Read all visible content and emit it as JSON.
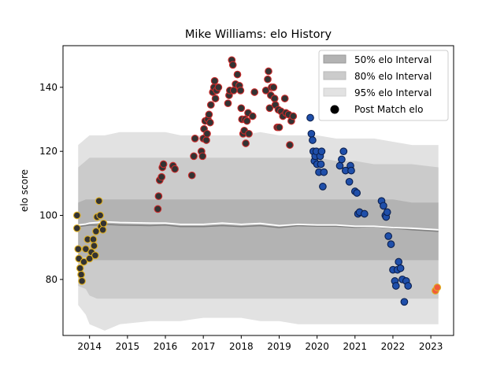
{
  "chart_data": {
    "type": "scatter",
    "title": "Mike Williams: elo History",
    "xlabel": "",
    "ylabel": "elo score",
    "xlim": [
      2013.3,
      2023.6
    ],
    "ylim": [
      62.5,
      153
    ],
    "x_ticks": [
      2014,
      2015,
      2016,
      2017,
      2018,
      2019,
      2020,
      2021,
      2022,
      2023
    ],
    "x_tick_labels": [
      "2014",
      "2015",
      "2016",
      "2017",
      "2018",
      "2019",
      "2020",
      "2021",
      "2022",
      "2023"
    ],
    "y_ticks": [
      80,
      100,
      120,
      140
    ],
    "y_tick_labels": [
      "80",
      "100",
      "120",
      "140"
    ],
    "legend": {
      "placement": "top-right",
      "entries": [
        {
          "label": "50% elo Interval",
          "color": "#b3b3b3"
        },
        {
          "label": "80% elo Interval",
          "color": "#cbcbcb"
        },
        {
          "label": "95% elo Interval",
          "color": "#e2e2e2"
        },
        {
          "label": "Post Match elo",
          "color": "#000000"
        }
      ]
    },
    "colors": {
      "band50": "#b3b3b3",
      "band80": "#cbcbcb",
      "band95": "#e2e2e2",
      "median_line": "#808080",
      "mean_line": "#ffffff",
      "point_fill": "#333333"
    },
    "bands": {
      "x": [
        2013.7,
        2013.9,
        2014.0,
        2014.2,
        2014.4,
        2014.8,
        2015.6,
        2016.0,
        2016.4,
        2017.0,
        2017.5,
        2018.0,
        2018.5,
        2019.0,
        2019.5,
        2020.0,
        2020.5,
        2021.0,
        2021.5,
        2022.0,
        2022.5,
        2023.2
      ],
      "p95_low": [
        72,
        69,
        66,
        65,
        64,
        66,
        67,
        67,
        67,
        68,
        68,
        68,
        67,
        67,
        66,
        66,
        66,
        66,
        66,
        66,
        66,
        66
      ],
      "p95_high": [
        122,
        124,
        125,
        125,
        125,
        126,
        126,
        126,
        125,
        125,
        125,
        125,
        126,
        125,
        125,
        125,
        124,
        124,
        124,
        123,
        122,
        122
      ],
      "p80_low": [
        78,
        77,
        75,
        74,
        74,
        74,
        74,
        74,
        74,
        74,
        74,
        74,
        74,
        74,
        74,
        74,
        74,
        74,
        74,
        74,
        74,
        74
      ],
      "p80_high": [
        115,
        117,
        118,
        118,
        118,
        118,
        118,
        118,
        118,
        118,
        118,
        118,
        118,
        118,
        118,
        118,
        117,
        117,
        116,
        116,
        116,
        115
      ],
      "p50_low": [
        87,
        87,
        86,
        86,
        86,
        86,
        86,
        86,
        86,
        86,
        86,
        86,
        86,
        86,
        86,
        86,
        86,
        86,
        86,
        86,
        86,
        86
      ],
      "p50_high": [
        104,
        105,
        105,
        105,
        105,
        105,
        105,
        105,
        105,
        105,
        105,
        105,
        105,
        105,
        105,
        105,
        105,
        105,
        105,
        105,
        104,
        104
      ],
      "median": [
        96.5,
        96.8,
        97,
        97,
        97.2,
        97,
        96.8,
        97,
        96.5,
        96.5,
        96.8,
        96.5,
        96.8,
        96.2,
        96.8,
        96.6,
        96.6,
        96.3,
        96.5,
        96,
        95.5,
        95
      ],
      "mean": [
        97,
        97.3,
        97.6,
        97.8,
        98,
        97.8,
        97.6,
        97.6,
        97.2,
        97.2,
        97.6,
        97.2,
        97.5,
        96.8,
        97.2,
        97,
        97,
        96.6,
        96.6,
        96.2,
        96,
        95.5
      ]
    },
    "series": [
      {
        "edge_color": "#e0b020",
        "points": [
          [
            2013.67,
            100
          ],
          [
            2013.67,
            96
          ],
          [
            2013.7,
            89.5
          ],
          [
            2013.72,
            86.5
          ],
          [
            2013.75,
            83.5
          ],
          [
            2013.78,
            81.5
          ],
          [
            2013.8,
            79.5
          ],
          [
            2013.85,
            85.5
          ],
          [
            2013.9,
            89.5
          ],
          [
            2013.95,
            92.5
          ],
          [
            2014.0,
            86.5
          ],
          [
            2014.05,
            88.5
          ],
          [
            2014.1,
            92.5
          ],
          [
            2014.12,
            90.5
          ],
          [
            2014.15,
            87.5
          ],
          [
            2014.17,
            95
          ],
          [
            2014.2,
            99.5
          ],
          [
            2014.25,
            104.5
          ],
          [
            2014.28,
            100
          ],
          [
            2014.3,
            96.5
          ],
          [
            2014.35,
            95.5
          ],
          [
            2014.37,
            97.5
          ]
        ]
      },
      {
        "edge_color": "#cc2a2a",
        "points": [
          [
            2015.8,
            102
          ],
          [
            2015.82,
            106
          ],
          [
            2015.85,
            111
          ],
          [
            2015.9,
            112
          ],
          [
            2015.92,
            115
          ],
          [
            2015.95,
            116
          ],
          [
            2016.2,
            115.5
          ],
          [
            2016.25,
            114.5
          ],
          [
            2016.7,
            112.5
          ],
          [
            2016.75,
            118.5
          ],
          [
            2016.78,
            124
          ],
          [
            2016.95,
            120
          ],
          [
            2016.98,
            118.5
          ],
          [
            2017.0,
            124
          ],
          [
            2017.02,
            127
          ],
          [
            2017.05,
            129.5
          ],
          [
            2017.08,
            123.5
          ],
          [
            2017.1,
            125.5
          ],
          [
            2017.12,
            130
          ],
          [
            2017.15,
            131.5
          ],
          [
            2017.18,
            129
          ],
          [
            2017.2,
            134.5
          ],
          [
            2017.25,
            138.5
          ],
          [
            2017.28,
            140
          ],
          [
            2017.3,
            142
          ],
          [
            2017.32,
            136.5
          ],
          [
            2017.35,
            139
          ],
          [
            2017.4,
            140
          ],
          [
            2017.65,
            135
          ],
          [
            2017.68,
            137.5
          ],
          [
            2017.7,
            139
          ],
          [
            2017.75,
            148.5
          ],
          [
            2017.78,
            147
          ],
          [
            2017.8,
            139
          ],
          [
            2017.85,
            141
          ],
          [
            2017.9,
            144
          ],
          [
            2017.95,
            140.5
          ],
          [
            2017.98,
            139
          ],
          [
            2018.0,
            133.5
          ],
          [
            2018.02,
            130
          ],
          [
            2018.05,
            125.5
          ],
          [
            2018.08,
            126.5
          ],
          [
            2018.1,
            130
          ],
          [
            2018.12,
            122.5
          ],
          [
            2018.15,
            129.5
          ],
          [
            2018.18,
            132
          ],
          [
            2018.2,
            125.5
          ],
          [
            2018.3,
            131
          ],
          [
            2018.35,
            138.5
          ],
          [
            2018.65,
            139
          ],
          [
            2018.7,
            142.5
          ],
          [
            2018.72,
            145
          ],
          [
            2018.75,
            133.5
          ],
          [
            2018.78,
            137.5
          ],
          [
            2018.8,
            140
          ],
          [
            2018.85,
            140
          ],
          [
            2018.88,
            136.5
          ],
          [
            2018.9,
            134.5
          ],
          [
            2018.95,
            127.5
          ],
          [
            2018.98,
            133
          ],
          [
            2019.0,
            127.5
          ],
          [
            2019.05,
            132.5
          ],
          [
            2019.1,
            131
          ],
          [
            2019.15,
            136.5
          ],
          [
            2019.18,
            132
          ],
          [
            2019.25,
            131.5
          ],
          [
            2019.28,
            122
          ],
          [
            2019.32,
            129.5
          ],
          [
            2019.37,
            131
          ]
        ]
      },
      {
        "edge_color": "#0b1f4d",
        "fill": "#1f4faa",
        "points": [
          [
            2019.82,
            130.5
          ],
          [
            2019.85,
            125.5
          ],
          [
            2019.88,
            123.5
          ],
          [
            2019.9,
            120
          ],
          [
            2019.93,
            117
          ],
          [
            2019.95,
            118.5
          ],
          [
            2019.98,
            120
          ],
          [
            2020.0,
            116
          ],
          [
            2020.05,
            113.5
          ],
          [
            2020.08,
            118.5
          ],
          [
            2020.1,
            116
          ],
          [
            2020.12,
            120
          ],
          [
            2020.15,
            109
          ],
          [
            2020.18,
            113.5
          ],
          [
            2020.6,
            115.5
          ],
          [
            2020.65,
            117.5
          ],
          [
            2020.7,
            120
          ],
          [
            2020.75,
            114
          ],
          [
            2020.85,
            110.5
          ],
          [
            2020.88,
            115.5
          ],
          [
            2020.9,
            114
          ],
          [
            2021.0,
            107.5
          ],
          [
            2021.05,
            107
          ],
          [
            2021.08,
            100.5
          ],
          [
            2021.12,
            101
          ],
          [
            2021.25,
            100.5
          ],
          [
            2021.7,
            104.5
          ],
          [
            2021.75,
            103
          ],
          [
            2021.8,
            100
          ],
          [
            2021.82,
            99.5
          ],
          [
            2021.85,
            101
          ],
          [
            2021.88,
            93.5
          ],
          [
            2021.95,
            91
          ],
          [
            2022.0,
            83
          ],
          [
            2022.05,
            79.5
          ],
          [
            2022.08,
            78
          ],
          [
            2022.12,
            83
          ],
          [
            2022.15,
            85.5
          ],
          [
            2022.2,
            83.5
          ],
          [
            2022.25,
            80
          ],
          [
            2022.3,
            73
          ],
          [
            2022.35,
            79.5
          ],
          [
            2022.4,
            78
          ]
        ]
      },
      {
        "edge_color": "#e0b020",
        "fill": "#f05a3c",
        "points": [
          [
            2023.12,
            76.5
          ],
          [
            2023.17,
            77.5
          ]
        ]
      }
    ]
  }
}
